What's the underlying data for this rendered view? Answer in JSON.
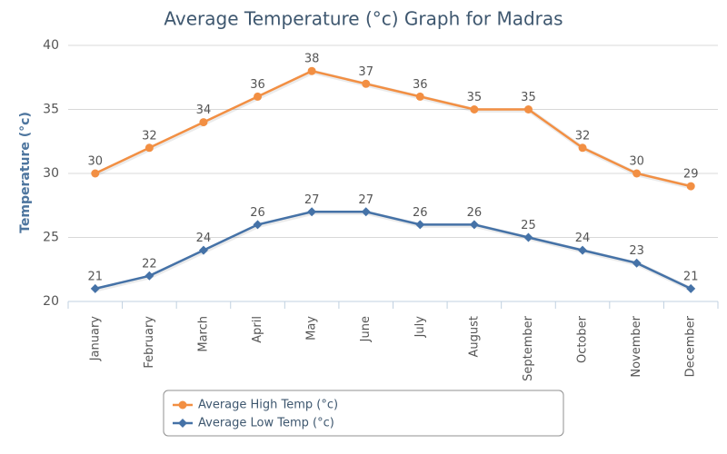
{
  "chart_data": {
    "type": "line",
    "title": "Average Temperature (°c) Graph for Madras",
    "y_label": "Temperature (°c)",
    "categories": [
      "January",
      "February",
      "March",
      "April",
      "May",
      "June",
      "July",
      "August",
      "September",
      "October",
      "November",
      "December"
    ],
    "series": [
      {
        "name": "Average High Temp (°c)",
        "color": "#f28f43",
        "marker": "circle",
        "values": [
          30,
          32,
          34,
          36,
          38,
          37,
          36,
          35,
          35,
          32,
          30,
          29
        ]
      },
      {
        "name": "Average Low Temp (°c)",
        "color": "#4572a7",
        "marker": "diamond",
        "values": [
          21,
          22,
          24,
          26,
          27,
          27,
          26,
          26,
          25,
          24,
          23,
          21
        ]
      }
    ],
    "ylim": [
      20,
      40
    ],
    "yticks": [
      20,
      25,
      30,
      35,
      40
    ],
    "grid": true,
    "legend": "bottom"
  }
}
